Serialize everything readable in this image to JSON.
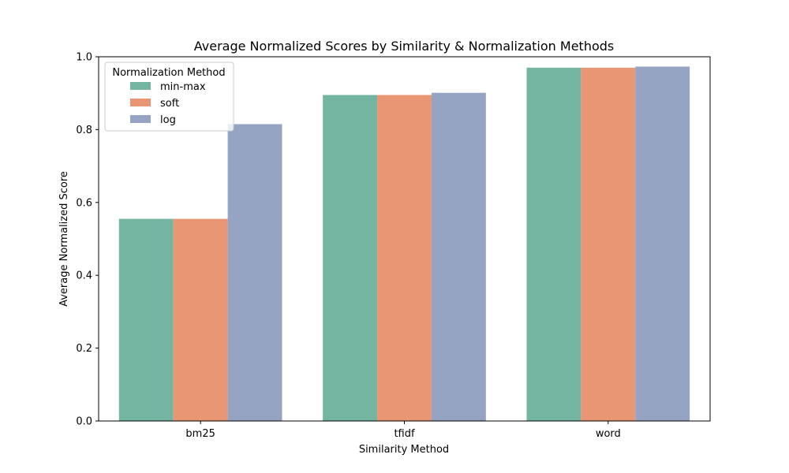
{
  "chart_data": {
    "type": "bar",
    "title": "Average Normalized Scores by Similarity & Normalization Methods",
    "xlabel": "Similarity Method",
    "ylabel": "Average Normalized Score",
    "categories": [
      "bm25",
      "tfidf",
      "word"
    ],
    "series": [
      {
        "name": "min-max",
        "color": "#73b5a0",
        "values": [
          0.555,
          0.895,
          0.97
        ]
      },
      {
        "name": "soft",
        "color": "#e99674",
        "values": [
          0.555,
          0.895,
          0.97
        ]
      },
      {
        "name": "log",
        "color": "#95a4c3",
        "values": [
          0.815,
          0.901,
          0.973
        ]
      }
    ],
    "ylim": [
      0,
      1.0
    ],
    "yticks": [
      "0.0",
      "0.2",
      "0.4",
      "0.6",
      "0.8",
      "1.0"
    ],
    "legend": {
      "title": "Normalization Method",
      "placement": "top-left"
    },
    "grid": false
  }
}
